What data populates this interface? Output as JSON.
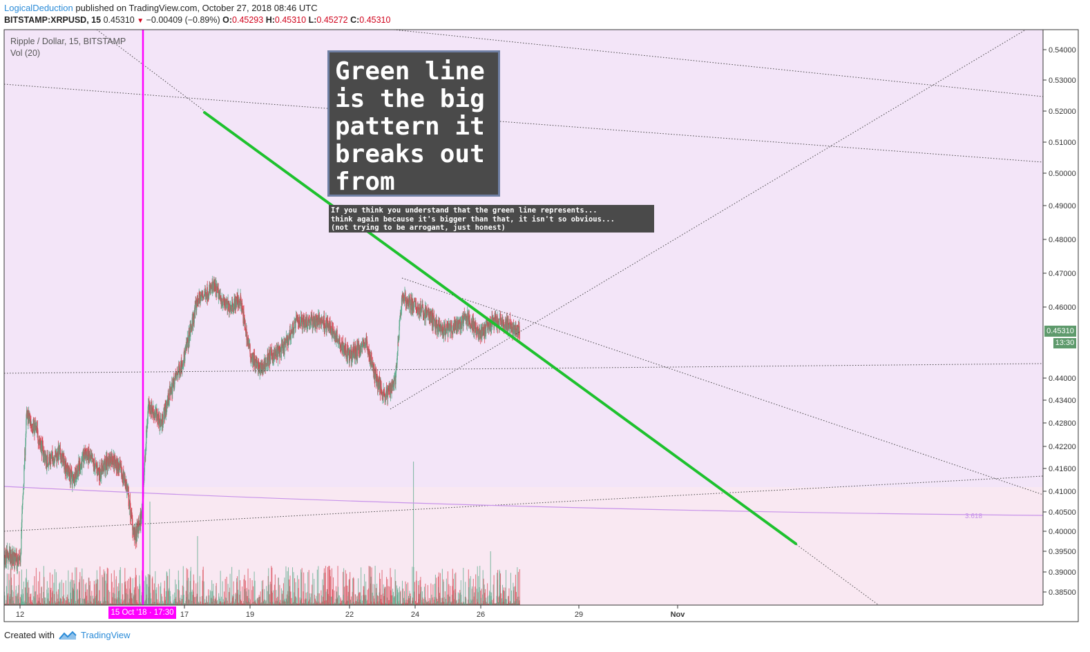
{
  "header": {
    "author": "LogicalDeduction",
    "published_text": " published on TradingView.com, October 27, 2018 08:46 UTC",
    "symbol": "BITSTAMP:XRPUSD, 15",
    "last": "0.45310",
    "change": "−0.00409 (−0.89%)",
    "o_label": "O:",
    "o": "0.45293",
    "h_label": "H:",
    "h": "0.45310",
    "l_label": "L:",
    "l": "0.45272",
    "c_label": "C:",
    "c": "0.45310"
  },
  "legend": {
    "title": "Ripple / Dollar, 15, BITSTAMP",
    "volume": "Vol (20)"
  },
  "notes": {
    "big": "Green line\nis the big\npattern it\nbreaks out\nfrom",
    "small": "If you think you understand that the green line represents...\nthink again because it's bigger than that, it isn't so obvious...\n(not trying to be arrogant, just honest)"
  },
  "price_scale": {
    "current_price": "0.45310",
    "countdown": "13:30",
    "fib_label": "3.618"
  },
  "time_axis": {
    "highlight_label": "15 Oct '18 · 17:30"
  },
  "footer": {
    "created_with": "Created with",
    "brand": "TradingView"
  },
  "colors": {
    "up": "#5aa98a",
    "down": "#d7434f",
    "green_line": "#1ec12e",
    "magenta": "#ff00ff",
    "fib_line": "#c792ea",
    "background_upper": "#f3e5f8",
    "background_lower": "#f9e8f2"
  },
  "chart_data": {
    "type": "candlestick",
    "symbol": "XRPUSD",
    "exchange": "BITSTAMP",
    "interval": "15",
    "y_ticks": [
      "0.54000",
      "0.53000",
      "0.52000",
      "0.51000",
      "0.50000",
      "0.49000",
      "0.48000",
      "0.47000",
      "0.46000",
      "0.44000",
      "0.43400",
      "0.42800",
      "0.42200",
      "0.41600",
      "0.41000",
      "0.40500",
      "0.40000",
      "0.39500",
      "0.39000",
      "0.38500"
    ],
    "x_ticks": [
      "12",
      "17",
      "19",
      "22",
      "24",
      "26",
      "29",
      "Nov"
    ],
    "x_tick_days": [
      12,
      17,
      19,
      22,
      24,
      26,
      29,
      32
    ],
    "close_path": [
      {
        "day": 11.0,
        "close": 0.405
      },
      {
        "day": 11.3,
        "close": 0.386
      },
      {
        "day": 11.6,
        "close": 0.394
      },
      {
        "day": 12.0,
        "close": 0.392
      },
      {
        "day": 12.2,
        "close": 0.43
      },
      {
        "day": 12.5,
        "close": 0.426
      },
      {
        "day": 12.8,
        "close": 0.418
      },
      {
        "day": 13.2,
        "close": 0.42
      },
      {
        "day": 13.6,
        "close": 0.413
      },
      {
        "day": 14.0,
        "close": 0.42
      },
      {
        "day": 14.4,
        "close": 0.415
      },
      {
        "day": 14.8,
        "close": 0.419
      },
      {
        "day": 15.2,
        "close": 0.413
      },
      {
        "day": 15.5,
        "close": 0.398
      },
      {
        "day": 15.7,
        "close": 0.404
      },
      {
        "day": 15.9,
        "close": 0.433
      },
      {
        "day": 16.3,
        "close": 0.428
      },
      {
        "day": 16.6,
        "close": 0.437
      },
      {
        "day": 17.0,
        "close": 0.446
      },
      {
        "day": 17.4,
        "close": 0.462
      },
      {
        "day": 17.9,
        "close": 0.466
      },
      {
        "day": 18.3,
        "close": 0.46
      },
      {
        "day": 18.7,
        "close": 0.462
      },
      {
        "day": 19.0,
        "close": 0.447
      },
      {
        "day": 19.3,
        "close": 0.442
      },
      {
        "day": 19.6,
        "close": 0.446
      },
      {
        "day": 20.0,
        "close": 0.448
      },
      {
        "day": 20.4,
        "close": 0.456
      },
      {
        "day": 20.8,
        "close": 0.456
      },
      {
        "day": 21.2,
        "close": 0.456
      },
      {
        "day": 21.6,
        "close": 0.452
      },
      {
        "day": 22.0,
        "close": 0.446
      },
      {
        "day": 22.5,
        "close": 0.45
      },
      {
        "day": 22.8,
        "close": 0.44
      },
      {
        "day": 23.1,
        "close": 0.435
      },
      {
        "day": 23.4,
        "close": 0.44
      },
      {
        "day": 23.6,
        "close": 0.463
      },
      {
        "day": 24.0,
        "close": 0.46
      },
      {
        "day": 24.4,
        "close": 0.458
      },
      {
        "day": 24.8,
        "close": 0.453
      },
      {
        "day": 25.2,
        "close": 0.454
      },
      {
        "day": 25.6,
        "close": 0.457
      },
      {
        "day": 26.0,
        "close": 0.452
      },
      {
        "day": 26.4,
        "close": 0.456
      },
      {
        "day": 26.8,
        "close": 0.455
      },
      {
        "day": 27.2,
        "close": 0.4531
      }
    ]
  }
}
